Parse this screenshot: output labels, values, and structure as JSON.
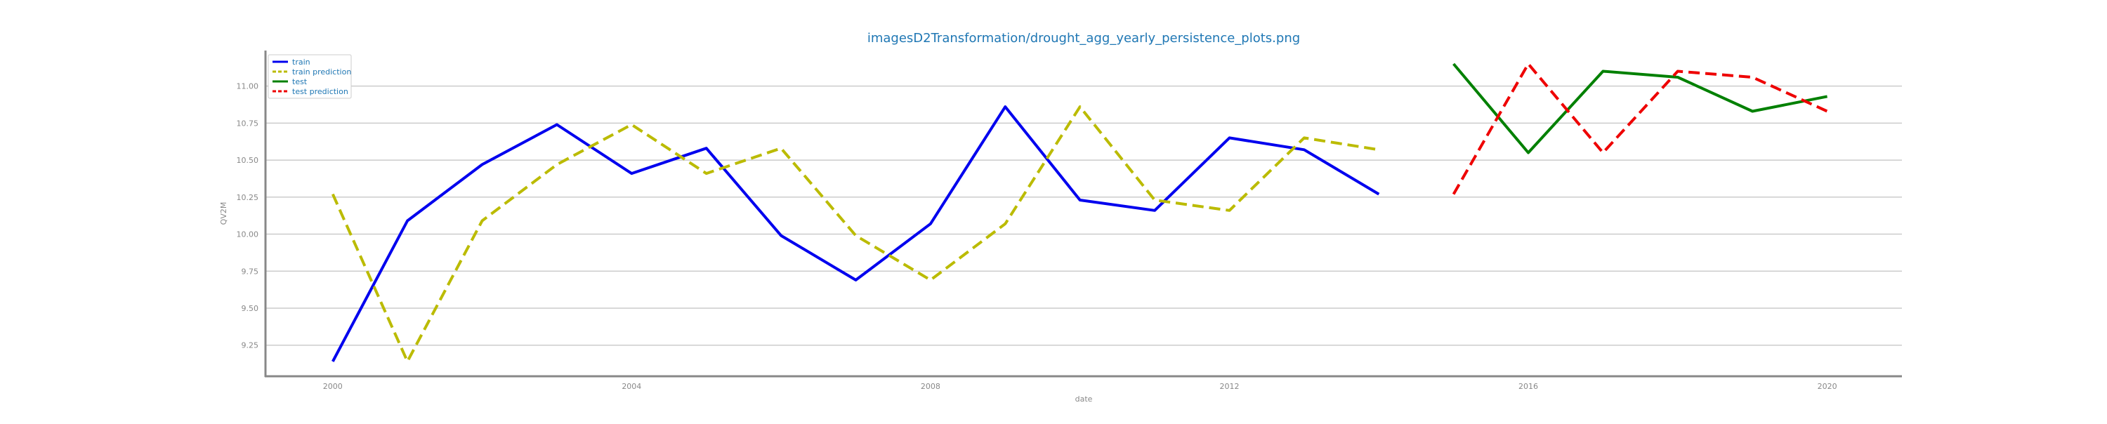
{
  "chart_data": {
    "type": "line",
    "title": "imagesD2Transformation/drought_agg_yearly_persistence_plots.png",
    "xlabel": "date",
    "ylabel": "QV2M",
    "xlim": [
      1999.1,
      2021.0
    ],
    "ylim": [
      9.04,
      11.24
    ],
    "x_ticks": [
      2000,
      2004,
      2008,
      2012,
      2016,
      2020
    ],
    "x_tick_labels": [
      "2000",
      "2004",
      "2008",
      "2012",
      "2016",
      "2020"
    ],
    "y_ticks": [
      9.25,
      9.5,
      9.75,
      10.0,
      10.25,
      10.5,
      10.75,
      11.0
    ],
    "y_tick_labels": [
      "9.25",
      "9.50",
      "9.75",
      "10.00",
      "10.25",
      "10.50",
      "10.75",
      "11.00"
    ],
    "grid": "horizontal",
    "legend_position": "top-left",
    "series": [
      {
        "name": "train",
        "color": "#0000ee",
        "dash": "solid",
        "x": [
          2000,
          2001,
          2002,
          2003,
          2004,
          2005,
          2006,
          2007,
          2008,
          2009,
          2010,
          2011,
          2012,
          2013,
          2014
        ],
        "y": [
          9.14,
          10.09,
          10.47,
          10.74,
          10.41,
          10.58,
          9.99,
          9.69,
          10.07,
          10.86,
          10.23,
          10.16,
          10.65,
          10.57,
          10.27
        ]
      },
      {
        "name": "train prediction",
        "color": "#bbbb00",
        "dash": "dashed",
        "x": [
          2000,
          2001,
          2002,
          2003,
          2004,
          2005,
          2006,
          2007,
          2008,
          2009,
          2010,
          2011,
          2012,
          2013,
          2014
        ],
        "y": [
          10.27,
          9.14,
          10.09,
          10.47,
          10.74,
          10.41,
          10.58,
          9.99,
          9.69,
          10.07,
          10.86,
          10.23,
          10.16,
          10.65,
          10.57
        ]
      },
      {
        "name": "test",
        "color": "#008000",
        "dash": "solid",
        "x": [
          2015,
          2016,
          2017,
          2018,
          2019,
          2020
        ],
        "y": [
          11.15,
          10.55,
          11.1,
          11.06,
          10.83,
          10.93
        ]
      },
      {
        "name": "test prediction",
        "color": "#ee0000",
        "dash": "dashed",
        "x": [
          2015,
          2016,
          2017,
          2018,
          2019,
          2020
        ],
        "y": [
          10.27,
          11.15,
          10.55,
          11.1,
          11.06,
          10.83
        ]
      }
    ]
  }
}
